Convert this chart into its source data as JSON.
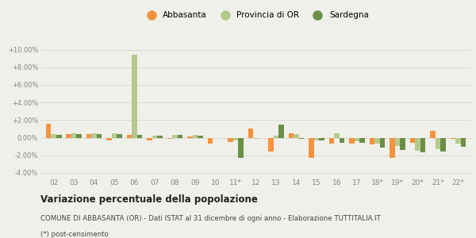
{
  "categories": [
    "02",
    "03",
    "04",
    "05",
    "06",
    "07",
    "08",
    "09",
    "10",
    "11*",
    "12",
    "13",
    "14",
    "15",
    "16",
    "17",
    "18*",
    "19*",
    "20*",
    "21*",
    "22*"
  ],
  "abbasanta": [
    1.6,
    0.4,
    0.4,
    -0.3,
    0.35,
    -0.3,
    -0.15,
    0.15,
    -0.7,
    -0.5,
    1.0,
    -1.6,
    0.5,
    -2.3,
    -0.7,
    -0.7,
    -0.8,
    -2.3,
    -0.6,
    0.8,
    -0.15
  ],
  "provincia": [
    0.4,
    0.5,
    0.5,
    0.5,
    9.4,
    0.2,
    0.35,
    0.3,
    0.0,
    -0.3,
    -0.1,
    0.25,
    0.4,
    -0.3,
    0.5,
    -0.4,
    -0.7,
    -0.9,
    -1.5,
    -1.3,
    -0.7
  ],
  "sardegna": [
    0.35,
    0.45,
    0.45,
    0.45,
    0.3,
    0.25,
    0.3,
    0.25,
    -0.05,
    -2.3,
    0.0,
    1.5,
    -0.1,
    -0.3,
    -0.6,
    -0.6,
    -1.1,
    -1.4,
    -1.7,
    -1.6,
    -1.0
  ],
  "color_abbasanta": "#f5923e",
  "color_provincia": "#b5c98e",
  "color_sardegna": "#6b8f47",
  "bg_color": "#f0f0eb",
  "grid_color": "#d8d8d0",
  "title_bold": "Variazione percentuale della popolazione",
  "subtitle1": "COMUNE DI ABBASANTA (OR) - Dati ISTAT al 31 dicembre di ogni anno - Elaborazione TUTTITALIA.IT",
  "subtitle2": "(*) post-censimento",
  "ylim": [
    -4.5,
    10.5
  ],
  "yticks": [
    -4.0,
    -2.0,
    0.0,
    2.0,
    4.0,
    6.0,
    8.0,
    10.0
  ]
}
